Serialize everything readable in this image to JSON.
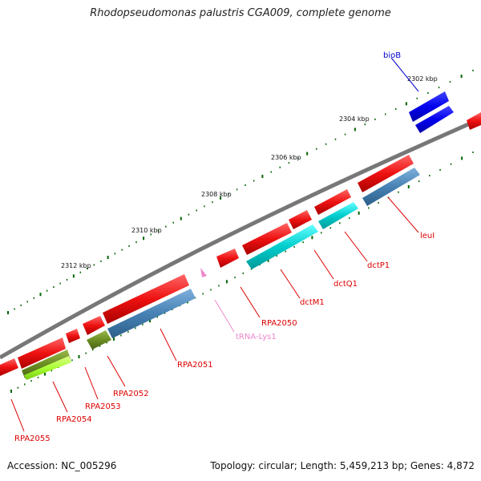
{
  "title": "Rhodopseudomonas palustris CGA009, complete genome",
  "footer": {
    "accession": "Accession: NC_005296",
    "summary": "Topology: circular; Length: 5,459,213 bp; Genes: 4,872"
  },
  "ticks": [
    "2302 kbp",
    "2304 kbp",
    "2306 kbp",
    "2308 kbp",
    "2310 kbp",
    "2312 kbp"
  ],
  "genes": [
    {
      "name": "bioB",
      "color": "#0000cc"
    },
    {
      "name": "leuI",
      "color": "#dd0000"
    },
    {
      "name": "dctP1",
      "color": "#dd0000"
    },
    {
      "name": "dctQ1",
      "color": "#dd0000"
    },
    {
      "name": "dctM1",
      "color": "#dd0000"
    },
    {
      "name": "RPA2050",
      "color": "#dd0000"
    },
    {
      "name": "tRNA-Lys1",
      "color": "#ee88cc"
    },
    {
      "name": "RPA2051",
      "color": "#dd0000"
    },
    {
      "name": "RPA2052",
      "color": "#dd0000"
    },
    {
      "name": "RPA2053",
      "color": "#dd0000"
    },
    {
      "name": "RPA2054",
      "color": "#dd0000"
    },
    {
      "name": "RPA2055",
      "color": "#dd0000"
    }
  ],
  "colors": {
    "cds": "#ee1111",
    "blue_feature": "#0000ee",
    "cog_steel": "#4682b4",
    "cog_cyan": "#00cccc",
    "cog_olive": "#6b8e23",
    "cog_lime": "#aaff33",
    "backbone": "#777777",
    "tick": "#006400"
  }
}
